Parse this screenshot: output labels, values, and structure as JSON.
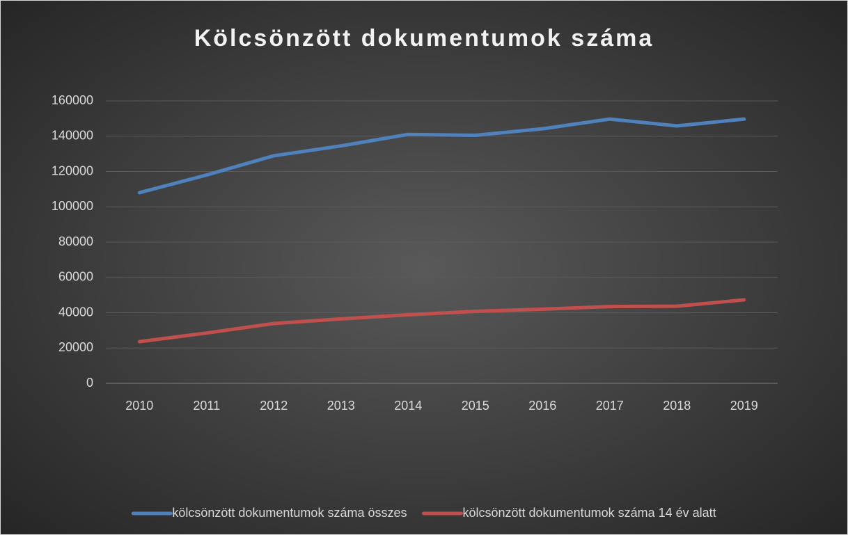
{
  "chart_data": {
    "type": "line",
    "title": "Kölcsönzött dokumentumok száma",
    "categories": [
      "2010",
      "2011",
      "2012",
      "2013",
      "2014",
      "2015",
      "2016",
      "2017",
      "2018",
      "2019"
    ],
    "series": [
      {
        "name": "kölcsönzött dokumentumok száma összes",
        "color": "#4f81bd",
        "values": [
          108000,
          118000,
          128900,
          134500,
          141000,
          140500,
          144200,
          149700,
          145800,
          149700
        ]
      },
      {
        "name": "kölcsönzött dokumentumok száma 14 év alatt",
        "color": "#c0504d",
        "values": [
          23600,
          28500,
          33900,
          36500,
          38800,
          40800,
          42000,
          43500,
          43700,
          47300
        ]
      }
    ],
    "ylim": [
      0,
      160000
    ],
    "yticks": [
      0,
      20000,
      40000,
      60000,
      80000,
      100000,
      120000,
      140000,
      160000
    ],
    "grid": true,
    "legend": "bottom"
  }
}
